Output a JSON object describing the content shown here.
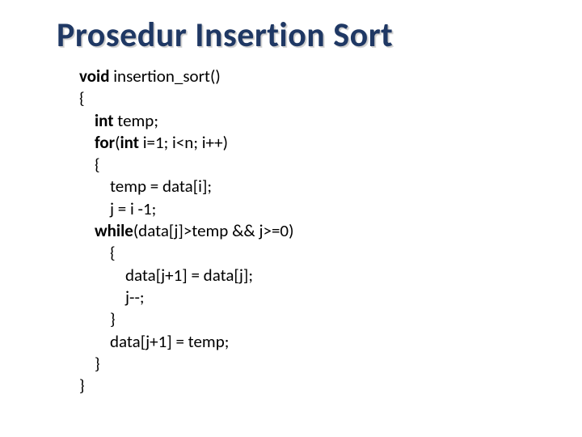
{
  "slide": {
    "title": "Prosedur Insertion Sort",
    "title_color": "#1f3864",
    "title_fontsize": 42,
    "background_color": "#ffffff",
    "code": {
      "font_family": "Calibri",
      "font_size": 21,
      "text_color": "#000000",
      "keyword_weight": "bold",
      "lines": [
        {
          "indent": 0,
          "segments": [
            {
              "t": "void",
              "kw": true
            },
            {
              "t": " insertion_sort()"
            }
          ]
        },
        {
          "indent": 0,
          "segments": [
            {
              "t": "{"
            }
          ]
        },
        {
          "indent": 1,
          "segments": [
            {
              "t": "int",
              "kw": true
            },
            {
              "t": " temp;"
            }
          ]
        },
        {
          "indent": 1,
          "segments": [
            {
              "t": "for",
              "kw": true
            },
            {
              "t": "("
            },
            {
              "t": "int",
              "kw": true
            },
            {
              "t": " i=1; i<n; i++)"
            }
          ]
        },
        {
          "indent": 1,
          "segments": [
            {
              "t": "{"
            }
          ]
        },
        {
          "indent": 2,
          "segments": [
            {
              "t": "temp = data[i];"
            }
          ]
        },
        {
          "indent": 2,
          "segments": [
            {
              "t": "j = i -1;"
            }
          ]
        },
        {
          "indent": 1,
          "segments": [
            {
              "t": "while",
              "kw": true
            },
            {
              "t": "(data[j]>temp && j>=0)"
            }
          ]
        },
        {
          "indent": 2,
          "segments": [
            {
              "t": "{"
            }
          ]
        },
        {
          "indent": 3,
          "segments": [
            {
              "t": "data[j+1] = data[j];"
            }
          ]
        },
        {
          "indent": 3,
          "segments": [
            {
              "t": "j--;"
            }
          ]
        },
        {
          "indent": 2,
          "segments": [
            {
              "t": "}"
            }
          ]
        },
        {
          "indent": 2,
          "segments": [
            {
              "t": "data[j+1] = temp;"
            }
          ]
        },
        {
          "indent": 1,
          "segments": [
            {
              "t": "}"
            }
          ]
        },
        {
          "indent": 0,
          "segments": [
            {
              "t": "}"
            }
          ]
        }
      ],
      "indent_unit": "    "
    }
  }
}
